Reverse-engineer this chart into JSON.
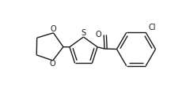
{
  "bg_color": "#ffffff",
  "line_color": "#1a1a1a",
  "line_width": 1.0,
  "text_color": "#1a1a1a",
  "font_size": 6.5,
  "figsize": [
    2.35,
    1.17
  ],
  "dpi": 100,
  "atoms": {
    "S_label": "S",
    "O1_label": "O",
    "O2_label": "O",
    "O_carbonyl_label": "O",
    "Cl_label": "Cl"
  },
  "xlim": [
    0.0,
    2.35
  ],
  "ylim": [
    0.0,
    1.17
  ]
}
